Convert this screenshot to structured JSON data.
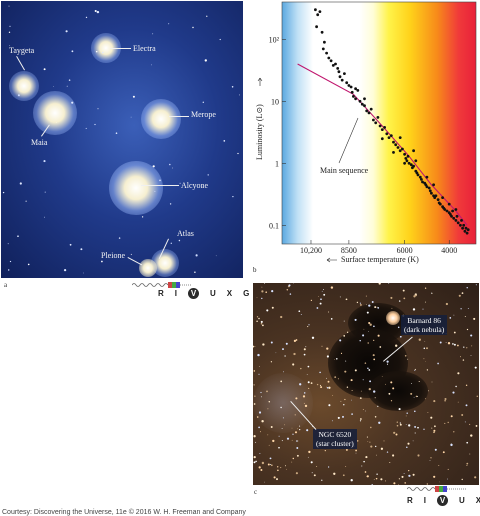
{
  "panel_a": {
    "letter": "a",
    "labels": {
      "taygeta": "Taygeta",
      "electra": "Electra",
      "maia": "Maia",
      "merope": "Merope",
      "alcyone": "Alcyone",
      "atlas": "Atlas",
      "pleione": "Pleione"
    }
  },
  "panel_b": {
    "letter": "b"
  },
  "panel_c": {
    "letter": "c",
    "barnard_line1": "Barnard 86",
    "barnard_line2": "(dark nebula)",
    "ngc_line1": "NGC 6520",
    "ngc_line2": "(star cluster)"
  },
  "filter_bar": {
    "letters": [
      "R",
      "I",
      "V",
      "U",
      "X",
      "G"
    ],
    "selected": "V"
  },
  "chart_data": {
    "type": "scatter",
    "title": "",
    "xlabel": "Surface temperature (K)",
    "ylabel": "Luminosity (L⊙)",
    "x_reversed": true,
    "y_scale": "log",
    "xlim": [
      11500,
      2800
    ],
    "ylim": [
      0.05,
      400
    ],
    "x_ticks": [
      10200,
      8500,
      6000,
      4000
    ],
    "x_tick_labels": [
      "10,200",
      "8500",
      "6000",
      "4000"
    ],
    "y_ticks": [
      0.1,
      1,
      10,
      100
    ],
    "y_tick_labels": [
      "0.1",
      "1",
      "10",
      "10²"
    ],
    "annotation": "Main sequence",
    "main_sequence_line": [
      [
        10800,
        40
      ],
      [
        8300,
        13
      ],
      [
        7000,
        4
      ],
      [
        5800,
        1.3
      ],
      [
        4800,
        0.45
      ],
      [
        3700,
        0.17
      ],
      [
        3200,
        0.1
      ]
    ],
    "points": [
      [
        10000,
        300
      ],
      [
        9900,
        250
      ],
      [
        9950,
        160
      ],
      [
        9800,
        280
      ],
      [
        9700,
        130
      ],
      [
        9600,
        90
      ],
      [
        9650,
        70
      ],
      [
        9500,
        60
      ],
      [
        9400,
        50
      ],
      [
        9300,
        45
      ],
      [
        9200,
        38
      ],
      [
        9100,
        40
      ],
      [
        9000,
        34
      ],
      [
        8950,
        30
      ],
      [
        8900,
        25
      ],
      [
        8800,
        22
      ],
      [
        8700,
        28
      ],
      [
        8600,
        20
      ],
      [
        8500,
        18
      ],
      [
        8400,
        17
      ],
      [
        8350,
        14
      ],
      [
        8300,
        12
      ],
      [
        8200,
        11
      ],
      [
        8100,
        15
      ],
      [
        8000,
        10
      ],
      [
        7900,
        9
      ],
      [
        7800,
        8.5
      ],
      [
        7700,
        7
      ],
      [
        7600,
        6.5
      ],
      [
        7500,
        7.5
      ],
      [
        7400,
        5
      ],
      [
        7300,
        4.5
      ],
      [
        7200,
        5.5
      ],
      [
        7100,
        4
      ],
      [
        7000,
        3.5
      ],
      [
        6900,
        3.8
      ],
      [
        6800,
        3
      ],
      [
        6700,
        2.6
      ],
      [
        6600,
        2.8
      ],
      [
        6500,
        2.2
      ],
      [
        6400,
        2
      ],
      [
        6300,
        1.8
      ],
      [
        6200,
        1.6
      ],
      [
        6100,
        1.7
      ],
      [
        6000,
        1.4
      ],
      [
        5950,
        1.2
      ],
      [
        5900,
        1.1
      ],
      [
        5850,
        1.3
      ],
      [
        5800,
        1
      ],
      [
        5700,
        0.95
      ],
      [
        5650,
        0.85
      ],
      [
        5600,
        0.9
      ],
      [
        5500,
        0.75
      ],
      [
        5450,
        0.7
      ],
      [
        5400,
        0.65
      ],
      [
        5300,
        0.6
      ],
      [
        5250,
        0.55
      ],
      [
        5200,
        0.5
      ],
      [
        5100,
        0.48
      ],
      [
        5050,
        0.45
      ],
      [
        5000,
        0.42
      ],
      [
        4900,
        0.4
      ],
      [
        4850,
        0.36
      ],
      [
        4800,
        0.33
      ],
      [
        4700,
        0.3
      ],
      [
        4650,
        0.28
      ],
      [
        4600,
        0.3
      ],
      [
        4500,
        0.26
      ],
      [
        4450,
        0.23
      ],
      [
        4400,
        0.22
      ],
      [
        4300,
        0.2
      ],
      [
        4250,
        0.19
      ],
      [
        4200,
        0.18
      ],
      [
        4100,
        0.17
      ],
      [
        4000,
        0.16
      ],
      [
        3950,
        0.15
      ],
      [
        3900,
        0.14
      ],
      [
        3850,
        0.17
      ],
      [
        3800,
        0.13
      ],
      [
        3700,
        0.12
      ],
      [
        3650,
        0.14
      ],
      [
        3600,
        0.11
      ],
      [
        3500,
        0.1
      ],
      [
        3450,
        0.12
      ],
      [
        3400,
        0.09
      ],
      [
        3350,
        0.1
      ],
      [
        3300,
        0.08
      ],
      [
        3250,
        0.09
      ],
      [
        3200,
        0.075
      ],
      [
        3150,
        0.085
      ],
      [
        7000,
        2.5
      ],
      [
        6500,
        1.5
      ],
      [
        6000,
        1.0
      ],
      [
        5500,
        1.1
      ],
      [
        5000,
        0.6
      ],
      [
        4700,
        0.45
      ],
      [
        4300,
        0.28
      ],
      [
        4000,
        0.22
      ],
      [
        3700,
        0.18
      ],
      [
        6200,
        2.6
      ],
      [
        5600,
        1.6
      ],
      [
        8200,
        16
      ],
      [
        7800,
        11
      ]
    ]
  },
  "footer": "Courtesy: Discovering the Universe, 11e © 2016 W. H. Freeman and Company"
}
